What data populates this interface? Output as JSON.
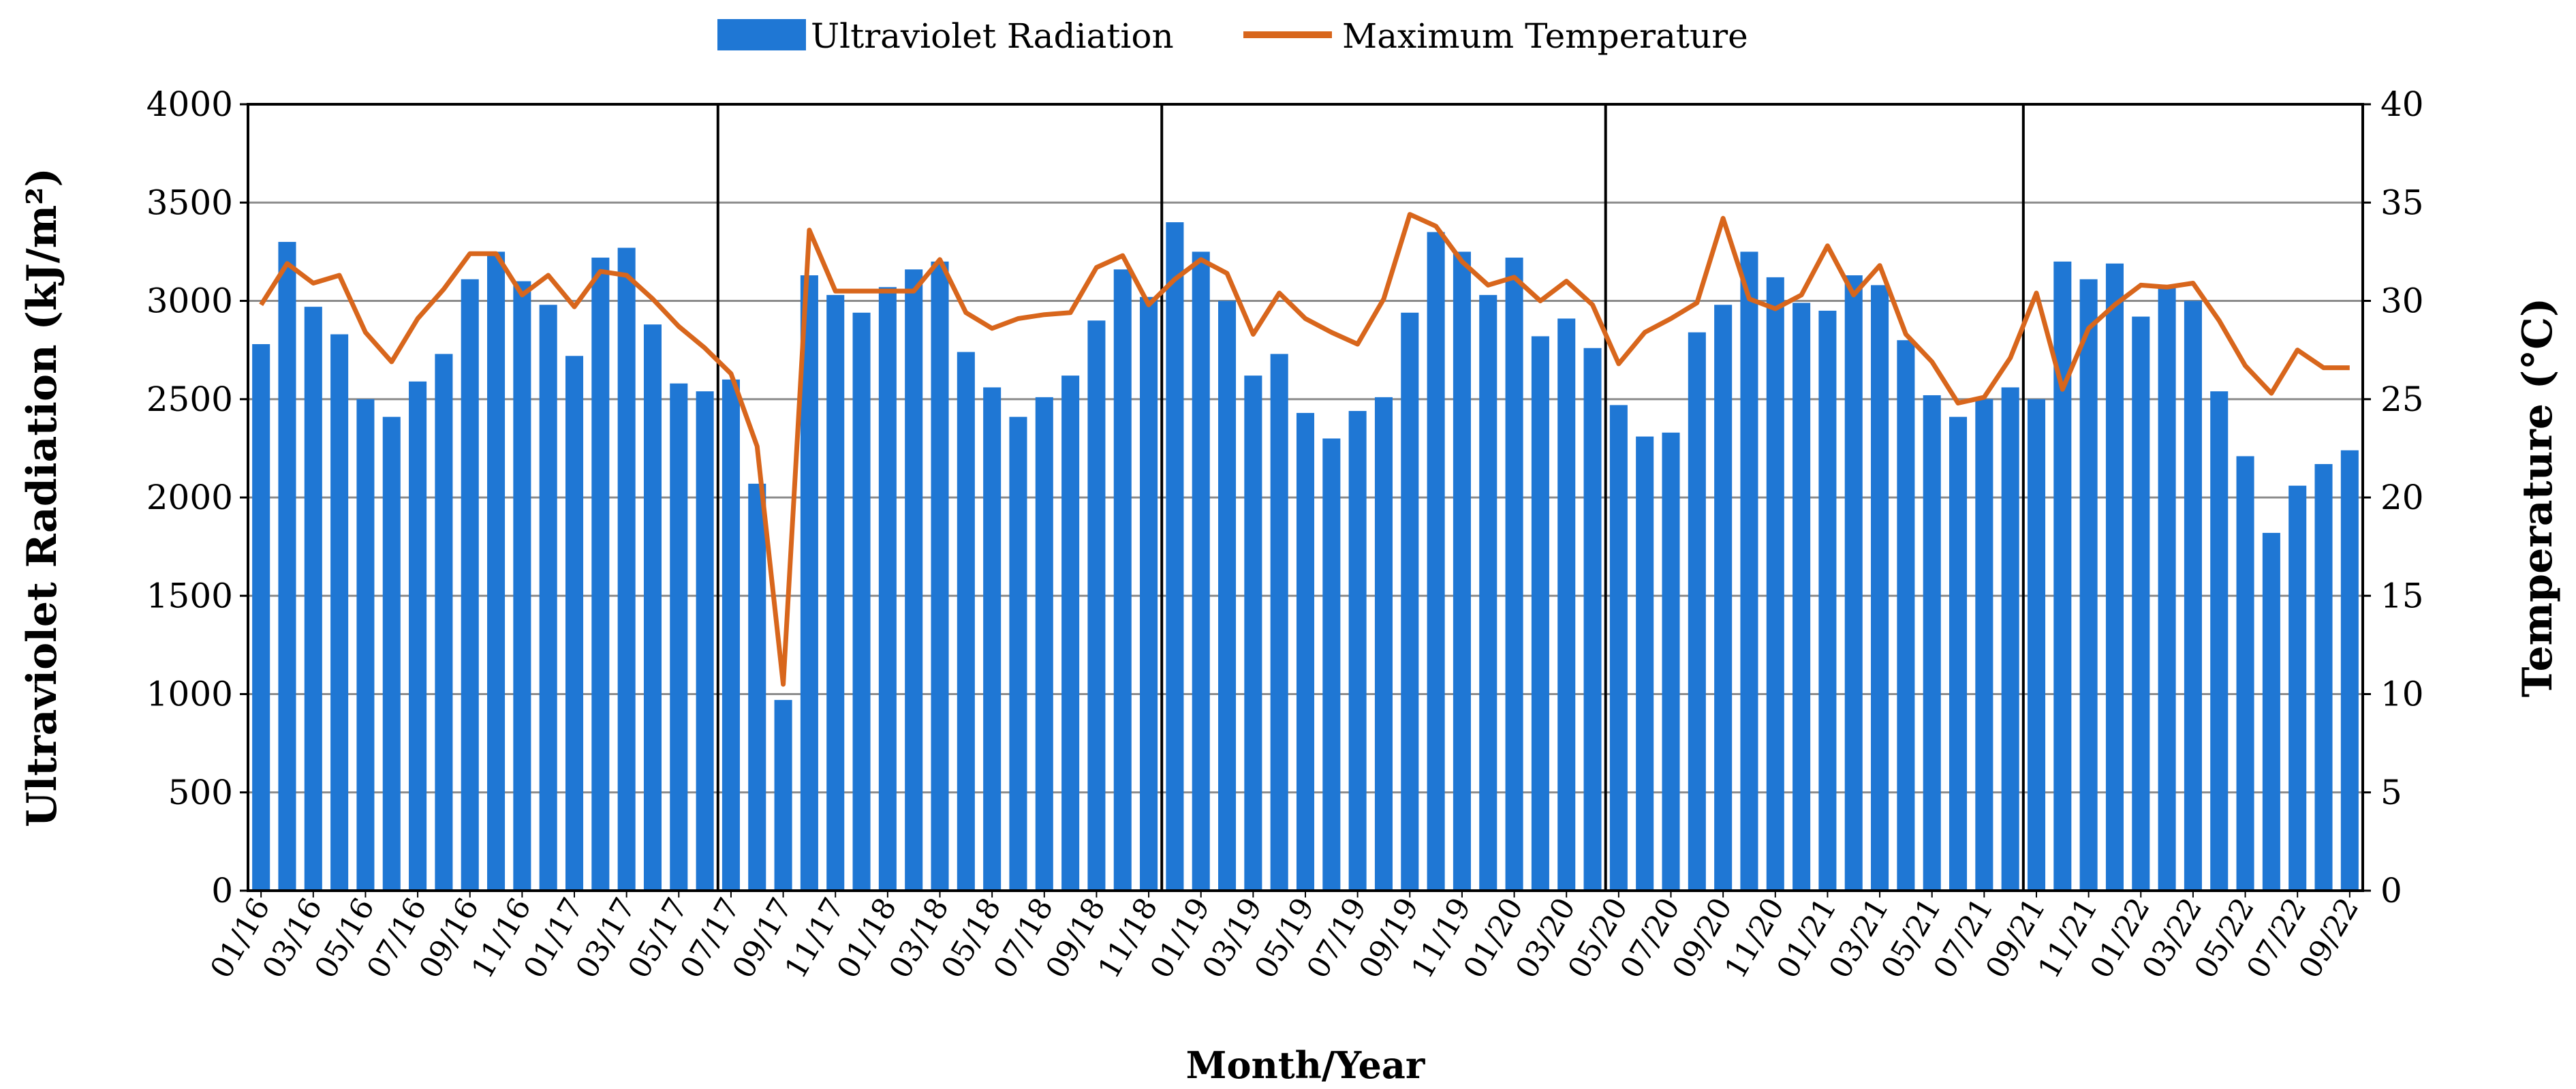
{
  "chart_data": {
    "type": "bar+line",
    "title": "",
    "xlabel": "Month/Year",
    "ylabel_left": "Ultraviolet  Radiation  (kJ/m²)",
    "ylabel_right": "Temperature (°C)",
    "ylim_left": [
      0,
      4000
    ],
    "ylim_right": [
      0,
      40
    ],
    "yticks_left": [
      "0",
      "500",
      "1000",
      "1500",
      "2000",
      "2500",
      "3000",
      "3500",
      "4000"
    ],
    "yticks_right": [
      "0",
      "5",
      "10",
      "15",
      "20",
      "25",
      "30",
      "35",
      "40"
    ],
    "grid": true,
    "legend_position": "top",
    "categories": [
      "01/16",
      "02/16",
      "03/16",
      "04/16",
      "05/16",
      "06/16",
      "07/16",
      "08/16",
      "09/16",
      "10/16",
      "11/16",
      "12/16",
      "01/17",
      "02/17",
      "03/17",
      "04/17",
      "05/17",
      "06/17",
      "07/17",
      "08/17",
      "09/17",
      "10/17",
      "11/17",
      "12/17",
      "01/18",
      "02/18",
      "03/18",
      "04/18",
      "05/18",
      "06/18",
      "07/18",
      "08/18",
      "09/18",
      "10/18",
      "11/18",
      "12/18",
      "01/19",
      "02/19",
      "03/19",
      "04/19",
      "05/19",
      "06/19",
      "07/19",
      "08/19",
      "09/19",
      "10/19",
      "11/19",
      "12/19",
      "01/20",
      "02/20",
      "03/20",
      "04/20",
      "05/20",
      "06/20",
      "07/20",
      "08/20",
      "09/20",
      "10/20",
      "11/20",
      "12/20",
      "01/21",
      "02/21",
      "03/21",
      "04/21",
      "05/21",
      "06/21",
      "07/21",
      "08/21",
      "09/21",
      "10/21",
      "11/21",
      "12/21",
      "01/22",
      "02/22",
      "03/22",
      "04/22",
      "05/22",
      "06/22",
      "07/22",
      "08/22",
      "09/22"
    ],
    "tick_labels": [
      "01/16",
      "03/16",
      "05/16",
      "07/16",
      "09/16",
      "11/16",
      "01/17",
      "03/17",
      "05/17",
      "07/17",
      "09/17",
      "11/17",
      "01/18",
      "03/18",
      "05/18",
      "07/18",
      "09/18",
      "11/18",
      "01/19",
      "03/19",
      "05/19",
      "07/19",
      "09/19",
      "11/19",
      "01/20",
      "03/20",
      "05/20",
      "07/20",
      "09/20",
      "11/20",
      "01/21",
      "03/21",
      "05/21",
      "07/21",
      "09/21",
      "11/21",
      "01/22",
      "03/22",
      "05/22",
      "07/22",
      "09/22"
    ],
    "series": [
      {
        "name": "Ultraviolet Radiation",
        "type": "bar",
        "axis": "left",
        "color": "#1f77d4",
        "values": [
          2780,
          3300,
          2970,
          2830,
          2500,
          2410,
          2590,
          2730,
          3110,
          3250,
          3100,
          2980,
          2720,
          3220,
          3270,
          2880,
          2580,
          2540,
          2600,
          2070,
          970,
          3130,
          3030,
          2940,
          3070,
          3160,
          3200,
          2740,
          2560,
          2410,
          2510,
          2620,
          2900,
          3160,
          3020,
          3400,
          3250,
          3000,
          2620,
          2730,
          2430,
          2300,
          2440,
          2510,
          2940,
          3350,
          3250,
          3030,
          3220,
          2820,
          2910,
          2760,
          2470,
          2310,
          2330,
          2840,
          2980,
          3250,
          3120,
          2990,
          2950,
          3130,
          3080,
          2800,
          2520,
          2410,
          2500,
          2560,
          2500,
          3200,
          3110,
          3190,
          2920,
          3080,
          3000,
          2540,
          2210,
          1820,
          2060,
          2170,
          2240
        ]
      },
      {
        "name": "Maximum Temperature",
        "type": "line",
        "axis": "right",
        "color": "#d8661c",
        "values": [
          29.8,
          31.9,
          30.9,
          31.3,
          28.4,
          26.9,
          29.1,
          30.6,
          32.4,
          32.4,
          30.3,
          31.3,
          29.7,
          31.5,
          31.3,
          30.1,
          28.7,
          27.6,
          26.3,
          22.6,
          10.5,
          33.6,
          30.5,
          30.5,
          30.5,
          30.5,
          32.1,
          29.4,
          28.6,
          29.1,
          29.3,
          29.4,
          31.7,
          32.3,
          29.8,
          31.1,
          32.1,
          31.4,
          28.3,
          30.4,
          29.1,
          28.4,
          27.8,
          30.1,
          34.4,
          33.8,
          32.0,
          30.8,
          31.2,
          30.0,
          31.0,
          29.8,
          26.8,
          28.4,
          29.1,
          29.9,
          34.2,
          30.1,
          29.6,
          30.3,
          32.8,
          30.3,
          31.8,
          28.3,
          26.9,
          24.8,
          25.1,
          27.1,
          30.4,
          25.5,
          28.6,
          29.8,
          30.8,
          30.7,
          30.9,
          29.0,
          26.7,
          25.3,
          27.5,
          26.6,
          26.6
        ]
      }
    ],
    "vertical_separators_after": [
      "06/17",
      "11/18",
      "04/20",
      "08/21"
    ]
  },
  "legend": {
    "bar_label": "Ultraviolet Radiation",
    "line_label": "Maximum Temperature"
  }
}
